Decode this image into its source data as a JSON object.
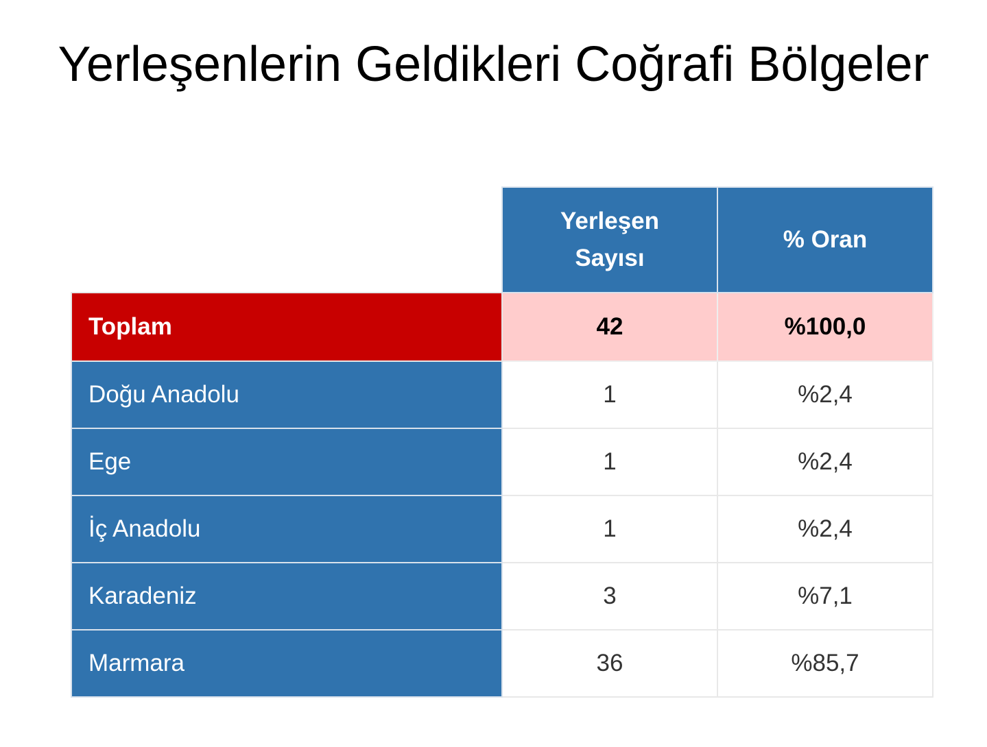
{
  "title": "Yerleşenlerin Geldikleri Coğrafi Bölgeler",
  "table": {
    "headers": {
      "count_line1": "Yerleşen",
      "count_line2": "Sayısı",
      "percent": "% Oran"
    },
    "total": {
      "label": "Toplam",
      "count": "42",
      "percent": "%100,0"
    },
    "rows": [
      {
        "label": "Doğu Anadolu",
        "count": "1",
        "percent": "%2,4"
      },
      {
        "label": "Ege",
        "count": "1",
        "percent": "%2,4"
      },
      {
        "label": "İç Anadolu",
        "count": "1",
        "percent": "%2,4"
      },
      {
        "label": "Karadeniz",
        "count": "3",
        "percent": "%7,1"
      },
      {
        "label": "Marmara",
        "count": "36",
        "percent": "%85,7"
      }
    ]
  },
  "colors": {
    "header_blue": "#3073ae",
    "total_red": "#c80000",
    "total_pink": "#ffcccc"
  }
}
